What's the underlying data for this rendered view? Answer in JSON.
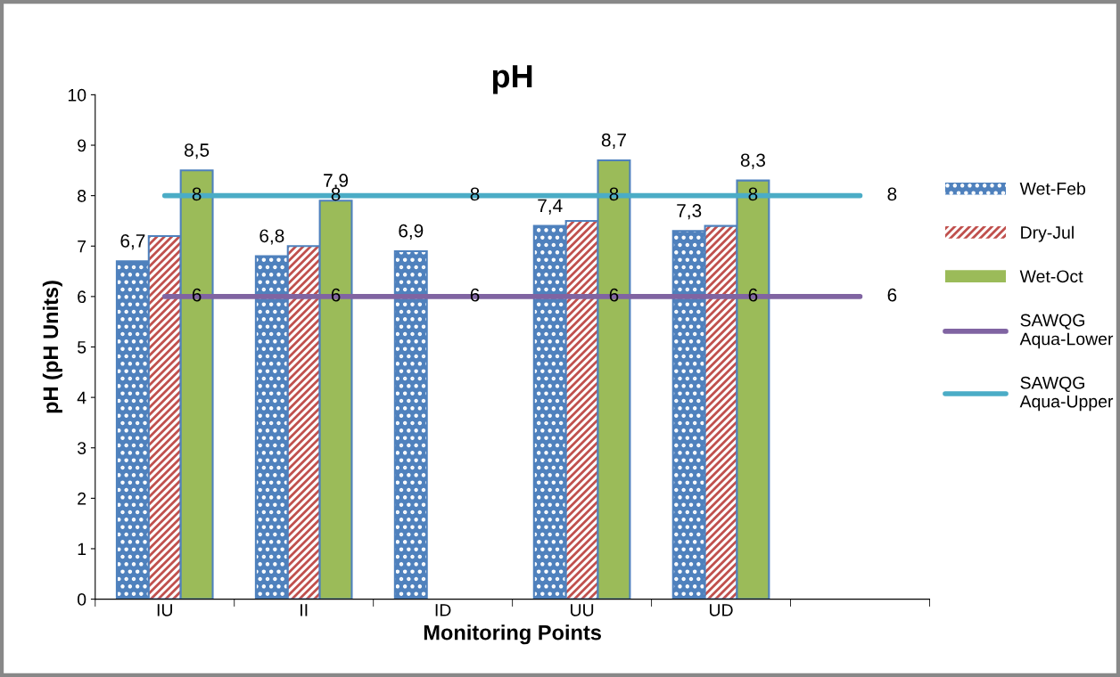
{
  "chart_data": {
    "type": "bar",
    "title": "pH",
    "xlabel": "Monitoring Points",
    "ylabel": "pH (pH Units)",
    "categories": [
      "IU",
      "II",
      "ID",
      "UU",
      "UD",
      null
    ],
    "series": [
      {
        "name": "Wet-Feb",
        "color": "#4f81bd",
        "values": [
          6.7,
          6.8,
          6.9,
          7.4,
          7.3,
          null
        ],
        "value_labels": [
          "6,7",
          "6,8",
          "6,9",
          "7,4",
          "7,3",
          null
        ]
      },
      {
        "name": "Dry-Jul",
        "color": "#c0504d",
        "values": [
          7.2,
          7.0,
          null,
          7.5,
          7.4,
          null
        ]
      },
      {
        "name": "Wet-Oct",
        "color": "#9bbb59",
        "values": [
          8.5,
          7.9,
          null,
          8.7,
          8.3,
          null
        ],
        "value_labels": [
          "8,5",
          "7,9",
          null,
          "8,7",
          "8,3",
          null
        ]
      },
      {
        "name": "SAWQG Aqua-Lower",
        "type": "line",
        "color": "#8064a2",
        "values": [
          6,
          6,
          6,
          6,
          6,
          6
        ],
        "value_labels": [
          "6",
          "6",
          "6",
          "6",
          "6",
          "6"
        ]
      },
      {
        "name": "SAWQG Aqua-Upper",
        "type": "line",
        "color": "#4bacc6",
        "values": [
          8,
          8,
          8,
          8,
          8,
          8
        ],
        "value_labels": [
          "8",
          "8",
          "8",
          "8",
          "8",
          "8"
        ]
      }
    ],
    "ylim": [
      0,
      10
    ],
    "yticks": [
      0,
      1,
      2,
      3,
      4,
      5,
      6,
      7,
      8,
      9,
      10
    ],
    "grid": false,
    "legend": "right"
  }
}
